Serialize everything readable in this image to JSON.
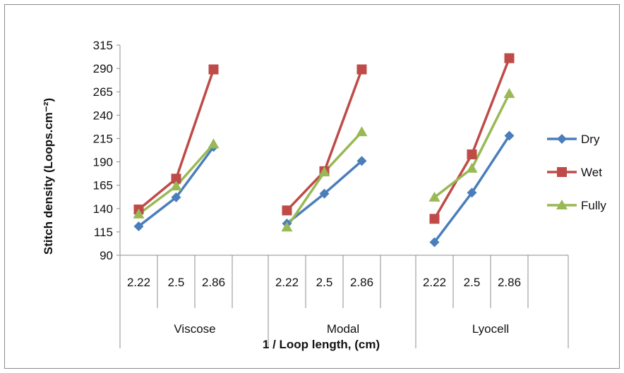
{
  "chart_data": {
    "type": "line",
    "xlabel": "1 / Loop length, (cm)",
    "ylabel": "Stitch density (Loops.cm⁻²)",
    "ylim": [
      90,
      315
    ],
    "yticks": [
      90,
      115,
      140,
      165,
      190,
      215,
      240,
      265,
      290,
      315
    ],
    "grid": false,
    "legend_position": "right",
    "groups": [
      {
        "name": "Viscose",
        "categories": [
          "2.22",
          "2.5",
          "2.86"
        ]
      },
      {
        "name": "Modal",
        "categories": [
          "2.22",
          "2.5",
          "2.86"
        ]
      },
      {
        "name": "Lyocell",
        "categories": [
          "2.22",
          "2.5",
          "2.86"
        ]
      }
    ],
    "series": [
      {
        "name": "Dry",
        "color": "#4a7ebb",
        "marker": "diamond",
        "values": [
          [
            121,
            152,
            206
          ],
          [
            124,
            156,
            191
          ],
          [
            104,
            157,
            218
          ]
        ]
      },
      {
        "name": "Wet",
        "color": "#be4b48",
        "marker": "square",
        "values": [
          [
            139,
            172,
            289
          ],
          [
            138,
            180,
            289
          ],
          [
            129,
            198,
            301
          ]
        ]
      },
      {
        "name": "Fully",
        "color": "#98b954",
        "marker": "triangle",
        "values": [
          [
            134,
            164,
            209
          ],
          [
            120,
            179,
            222
          ],
          [
            152,
            183,
            263
          ]
        ]
      }
    ]
  }
}
